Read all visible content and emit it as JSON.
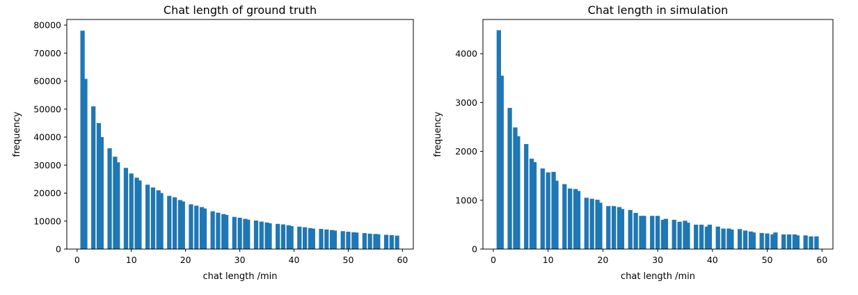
{
  "figure": {
    "chart_data": [
      {
        "type": "bar",
        "title": "Chat length of ground truth",
        "xlabel": "chat length /min",
        "ylabel": "frequency",
        "xlim": [
          -1.9,
          62
        ],
        "ylim": [
          0,
          82000
        ],
        "xticks": [
          "0",
          "10",
          "20",
          "30",
          "40",
          "50",
          "60"
        ],
        "xtick_values": [
          0,
          10,
          20,
          30,
          40,
          50,
          60
        ],
        "yticks": [
          "0",
          "10000",
          "20000",
          "30000",
          "40000",
          "50000",
          "60000",
          "70000",
          "80000"
        ],
        "ytick_values": [
          0,
          10000,
          20000,
          30000,
          40000,
          50000,
          60000,
          70000,
          80000
        ],
        "color": "#1f77b4",
        "grid": false,
        "x": [
          1,
          1.5,
          3,
          4,
          4.5,
          6,
          7,
          7.5,
          9,
          10,
          11,
          11.5,
          13,
          14,
          15,
          15.5,
          17,
          18,
          19,
          19.5,
          21,
          22,
          23,
          23.5,
          25,
          26,
          27,
          27.5,
          29,
          30,
          31,
          31.5,
          33,
          34,
          35,
          35.5,
          37,
          38,
          39,
          39.5,
          41,
          42,
          43,
          43.5,
          45,
          46,
          47,
          47.5,
          49,
          50,
          51,
          51.5,
          53,
          54,
          55,
          55.5,
          57,
          58,
          59
        ],
        "values": [
          78000,
          60800,
          51000,
          45000,
          40000,
          36000,
          33000,
          31000,
          29000,
          27000,
          25500,
          24500,
          23000,
          22000,
          21000,
          20000,
          19000,
          18500,
          17500,
          17000,
          16000,
          15500,
          15000,
          14500,
          13500,
          13000,
          12500,
          12200,
          11500,
          11200,
          10800,
          10500,
          10200,
          9800,
          9500,
          9200,
          9000,
          8800,
          8500,
          8200,
          8000,
          7800,
          7500,
          7300,
          7200,
          7000,
          6800,
          6600,
          6400,
          6200,
          6000,
          5900,
          5700,
          5500,
          5400,
          5300,
          5100,
          5000,
          4800
        ]
      },
      {
        "type": "bar",
        "title": "Chat length in simulation",
        "xlabel": "chat length /min",
        "ylabel": "frequency",
        "xlim": [
          -1.9,
          62
        ],
        "ylim": [
          0,
          4700
        ],
        "xticks": [
          "0",
          "10",
          "20",
          "30",
          "40",
          "50",
          "60"
        ],
        "xtick_values": [
          0,
          10,
          20,
          30,
          40,
          50,
          60
        ],
        "yticks": [
          "0",
          "1000",
          "2000",
          "3000",
          "4000"
        ],
        "ytick_values": [
          0,
          1000,
          2000,
          3000,
          4000
        ],
        "color": "#1f77b4",
        "grid": false,
        "x": [
          1,
          1.5,
          3,
          4,
          4.5,
          6,
          7,
          7.5,
          9,
          10,
          11,
          11.5,
          13,
          14,
          15,
          15.5,
          17,
          18,
          19,
          19.5,
          21,
          22,
          23,
          23.5,
          25,
          26,
          27,
          27.5,
          29,
          30,
          31,
          31.5,
          33,
          34,
          35,
          35.5,
          37,
          38,
          39,
          39.5,
          41,
          42,
          43,
          43.5,
          45,
          46,
          47,
          47.5,
          49,
          50,
          51,
          51.5,
          53,
          54,
          55,
          55.5,
          57,
          58,
          59
        ],
        "values": [
          4480,
          3550,
          2890,
          2490,
          2310,
          2150,
          1850,
          1780,
          1650,
          1570,
          1580,
          1400,
          1330,
          1240,
          1230,
          1190,
          1050,
          1030,
          1010,
          950,
          880,
          880,
          860,
          820,
          800,
          740,
          680,
          680,
          680,
          680,
          600,
          620,
          600,
          560,
          580,
          540,
          500,
          500,
          460,
          500,
          460,
          420,
          420,
          400,
          410,
          380,
          360,
          340,
          330,
          320,
          300,
          340,
          300,
          300,
          300,
          280,
          280,
          260,
          260
        ]
      }
    ]
  }
}
